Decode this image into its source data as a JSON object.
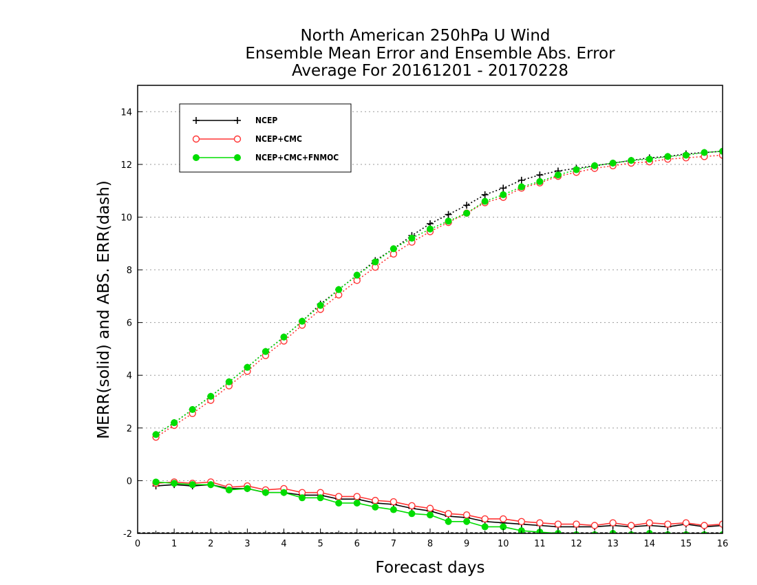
{
  "chart_data": {
    "type": "line",
    "title": [
      "North American 250hPa U Wind",
      "Ensemble Mean Error and Ensemble Abs. Error",
      "Average For 20161201 - 20170228"
    ],
    "xlabel": "Forecast days",
    "ylabel": "MERR(solid) and ABS. ERR(dash)",
    "xlim": [
      0,
      16
    ],
    "ylim": [
      -2,
      15
    ],
    "xticks": [
      "0",
      "1",
      "2",
      "3",
      "4",
      "5",
      "6",
      "7",
      "8",
      "9",
      "10",
      "11",
      "12",
      "13",
      "14",
      "15",
      "16"
    ],
    "yticks": [
      "-2",
      "0",
      "2",
      "4",
      "6",
      "8",
      "10",
      "12",
      "14"
    ],
    "grid": "horizontal dotted",
    "legend_position": "top-left",
    "x": [
      0.5,
      1,
      1.5,
      2,
      2.5,
      3,
      3.5,
      4,
      4.5,
      5,
      5.5,
      6,
      6.5,
      7,
      7.5,
      8,
      8.5,
      9,
      9.5,
      10,
      10.5,
      11,
      11.5,
      12,
      12.5,
      13,
      13.5,
      14,
      14.5,
      15,
      15.5,
      16
    ],
    "series": [
      {
        "name": "NCEP",
        "color": "#000000",
        "marker": "plus",
        "abs_err": [
          1.75,
          2.2,
          2.7,
          3.2,
          3.75,
          4.3,
          4.9,
          5.45,
          6.05,
          6.7,
          7.25,
          7.8,
          8.35,
          8.8,
          9.3,
          9.75,
          10.1,
          10.45,
          10.85,
          11.1,
          11.4,
          11.6,
          11.75,
          11.85,
          11.95,
          12.05,
          12.15,
          12.25,
          12.3,
          12.4,
          12.45,
          12.5
        ],
        "mean_err": [
          -0.2,
          -0.15,
          -0.2,
          -0.15,
          -0.3,
          -0.3,
          -0.45,
          -0.45,
          -0.55,
          -0.55,
          -0.7,
          -0.7,
          -0.85,
          -0.9,
          -1.05,
          -1.15,
          -1.35,
          -1.4,
          -1.55,
          -1.6,
          -1.65,
          -1.7,
          -1.75,
          -1.75,
          -1.75,
          -1.7,
          -1.75,
          -1.7,
          -1.75,
          -1.65,
          -1.75,
          -1.7
        ]
      },
      {
        "name": "NCEP+CMC",
        "color": "#ff3333",
        "marker": "open-circle",
        "abs_err": [
          1.65,
          2.1,
          2.55,
          3.05,
          3.6,
          4.15,
          4.75,
          5.3,
          5.9,
          6.5,
          7.05,
          7.6,
          8.1,
          8.6,
          9.05,
          9.45,
          9.8,
          10.15,
          10.55,
          10.75,
          11.1,
          11.3,
          11.55,
          11.7,
          11.85,
          11.95,
          12.05,
          12.1,
          12.2,
          12.25,
          12.3,
          12.35
        ],
        "mean_err": [
          -0.1,
          -0.05,
          -0.1,
          -0.05,
          -0.25,
          -0.2,
          -0.35,
          -0.3,
          -0.45,
          -0.45,
          -0.6,
          -0.6,
          -0.75,
          -0.8,
          -0.95,
          -1.05,
          -1.25,
          -1.3,
          -1.45,
          -1.45,
          -1.55,
          -1.6,
          -1.65,
          -1.65,
          -1.7,
          -1.6,
          -1.7,
          -1.6,
          -1.65,
          -1.6,
          -1.7,
          -1.65
        ]
      },
      {
        "name": "NCEP+CMC+FNMOC",
        "color": "#00dd00",
        "marker": "filled-circle",
        "abs_err": [
          1.75,
          2.2,
          2.7,
          3.2,
          3.75,
          4.3,
          4.9,
          5.45,
          6.05,
          6.65,
          7.25,
          7.8,
          8.3,
          8.8,
          9.2,
          9.55,
          9.85,
          10.15,
          10.6,
          10.85,
          11.15,
          11.35,
          11.6,
          11.8,
          11.95,
          12.05,
          12.15,
          12.2,
          12.3,
          12.35,
          12.45,
          12.5
        ],
        "mean_err": [
          -0.05,
          -0.1,
          -0.15,
          -0.15,
          -0.35,
          -0.3,
          -0.45,
          -0.45,
          -0.65,
          -0.65,
          -0.85,
          -0.85,
          -1.0,
          -1.1,
          -1.25,
          -1.3,
          -1.55,
          -1.55,
          -1.75,
          -1.75,
          -1.9,
          -1.95,
          -2.0,
          -2.05,
          -2.05,
          -2.0,
          -2.05,
          -2.0,
          -2.05,
          -2.05,
          -2.05,
          -2.05
        ]
      }
    ]
  }
}
